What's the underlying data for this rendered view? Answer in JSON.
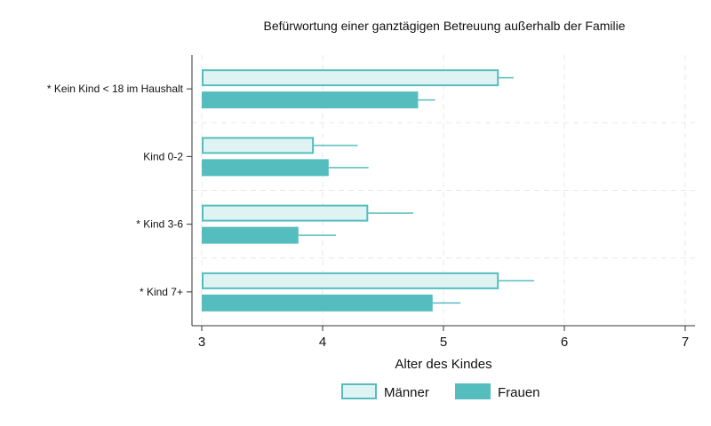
{
  "chart_data": {
    "type": "bar",
    "orientation": "horizontal",
    "title": "Befürwortung einer ganztägigen Betreuung außerhalb der Familie",
    "xlabel": "Alter des Kindes",
    "ylabel": "",
    "xlim": [
      2.92,
      7.1
    ],
    "xticks": [
      3,
      4,
      5,
      6,
      7
    ],
    "bar_base": 3,
    "grid": true,
    "legend_placement": "bottom",
    "categories": [
      "* Kein Kind < 18 im Haushalt",
      "Kind 0-2",
      "* Kind 3-6",
      "* Kind 7+"
    ],
    "series": [
      {
        "name": "Männer",
        "values": [
          5.45,
          3.92,
          4.37,
          5.45
        ],
        "ci_upper": [
          5.58,
          4.29,
          4.75,
          5.75
        ],
        "fill": "#dff3f3",
        "stroke": "#56bdbf"
      },
      {
        "name": "Frauen",
        "values": [
          4.79,
          4.05,
          3.8,
          4.91
        ],
        "ci_upper": [
          4.93,
          4.38,
          4.11,
          5.14
        ],
        "fill": "#56bdbf",
        "stroke": "#56bdbf"
      }
    ]
  }
}
